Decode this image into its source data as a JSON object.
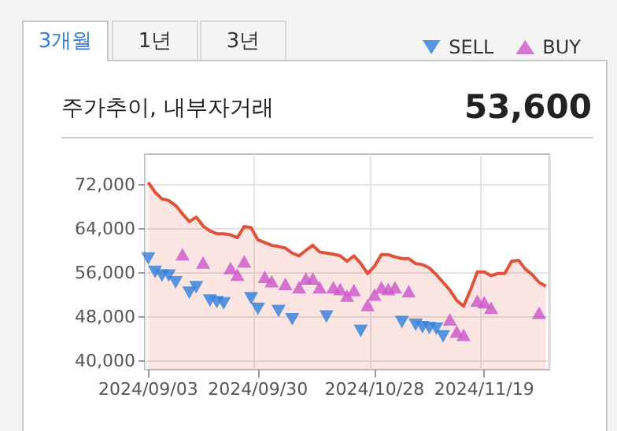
{
  "chart_data": {
    "type": "area",
    "title": "주가추이, 내부자거래",
    "annotations": [
      "3개월",
      "1년",
      "3년",
      "53,600"
    ],
    "categories": [
      "2024/09/03",
      null,
      null,
      null,
      null,
      null,
      null,
      null,
      null,
      null,
      null,
      null,
      null,
      null,
      null,
      null,
      "2024/09/30",
      null,
      null,
      null,
      null,
      null,
      null,
      null,
      null,
      null,
      null,
      null,
      null,
      null,
      null,
      null,
      null,
      "2024/10/28",
      null,
      null,
      null,
      null,
      null,
      null,
      null,
      null,
      null,
      null,
      null,
      null,
      null,
      null,
      null,
      "2024/11/19",
      null,
      null,
      null,
      null,
      null,
      null,
      null,
      null,
      null
    ],
    "series": [
      {
        "color": "#e0523a",
        "marker": "none",
        "values": [
          72400,
          70600,
          69400,
          69100,
          68200,
          66700,
          65300,
          66100,
          64500,
          63600,
          63100,
          63100,
          62900,
          62400,
          64400,
          64200,
          62000,
          61500,
          61000,
          60800,
          60500,
          59600,
          59100,
          60100,
          61000,
          59800,
          59600,
          59400,
          59100,
          58100,
          59100,
          57700,
          55900,
          57200,
          59300,
          59300,
          58900,
          58600,
          58600,
          57700,
          57500,
          56900,
          55700,
          54300,
          52900,
          51000,
          50000,
          52900,
          56200,
          56200,
          55500,
          55900,
          55900,
          58100,
          58300,
          56700,
          55700,
          54300,
          53600
        ]
      },
      {
        "type": "scatter",
        "name": "SELL",
        "color": "#2f7fdc",
        "marker": "triangle-down",
        "values": [
          58600,
          56200,
          55500,
          55500,
          54300,
          null,
          52400,
          53400,
          null,
          51000,
          50700,
          50500,
          null,
          null,
          null,
          51400,
          49500,
          null,
          null,
          49100,
          null,
          47600,
          null,
          null,
          null,
          null,
          48100,
          null,
          null,
          null,
          null,
          45500,
          null,
          null,
          null,
          null,
          null,
          47100,
          null,
          46600,
          46200,
          46000,
          45900,
          44500,
          null,
          null,
          null,
          null,
          null,
          null,
          null,
          null,
          null,
          null,
          null,
          null,
          null,
          null,
          null
        ]
      },
      {
        "type": "scatter",
        "name": "BUY",
        "color": "#cc55cc",
        "marker": "triangle",
        "values": [
          null,
          null,
          null,
          null,
          null,
          59400,
          null,
          null,
          57900,
          null,
          null,
          null,
          56900,
          55700,
          58100,
          null,
          null,
          55300,
          54500,
          null,
          54000,
          null,
          53400,
          55000,
          55000,
          53400,
          null,
          53400,
          53100,
          51900,
          52900,
          null,
          50200,
          52100,
          53400,
          53100,
          53400,
          null,
          52700,
          null,
          null,
          null,
          null,
          null,
          47600,
          45400,
          44800,
          null,
          51000,
          50700,
          49700,
          null,
          null,
          null,
          null,
          null,
          null,
          48800,
          null
        ]
      }
    ],
    "ylim": [
      38500,
      77500
    ],
    "yticks": [
      {
        "value": 40000,
        "label": "40,000"
      },
      {
        "value": 48000,
        "label": "48,000"
      },
      {
        "value": 56000,
        "label": "56,000"
      },
      {
        "value": 64000,
        "label": "64,000"
      },
      {
        "value": 72000,
        "label": "72,000"
      }
    ],
    "grid": true,
    "legend": "top right"
  }
}
